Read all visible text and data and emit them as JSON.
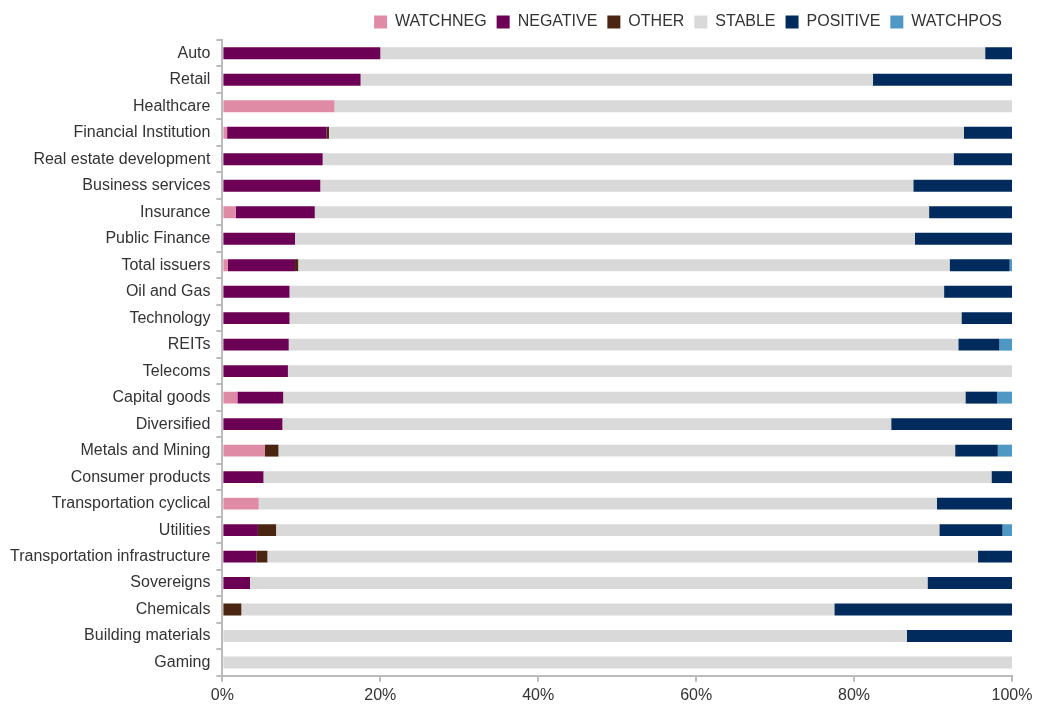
{
  "chart_data": {
    "type": "bar",
    "orientation": "horizontal",
    "stacked": true,
    "legend": "top right",
    "grid": false,
    "categories": [
      "Auto",
      "Retail",
      "Healthcare",
      "Financial Institution",
      "Real estate development",
      "Business services",
      "Insurance",
      "Public Finance",
      "Total issuers",
      "Oil and Gas",
      "Technology",
      "REITs",
      "Telecoms",
      "Capital goods",
      "Diversified",
      "Metals and Mining",
      "Consumer products",
      "Transportation cyclical",
      "Utilities",
      "Transportation infrastructure",
      "Sovereigns",
      "Chemicals",
      "Building materials",
      "Gaming"
    ],
    "xlim": [
      0,
      100
    ],
    "xticks": [
      {
        "value": 0,
        "label": "0%"
      },
      {
        "value": 20,
        "label": "20%"
      },
      {
        "value": 40,
        "label": "40%"
      },
      {
        "value": 60,
        "label": "60%"
      },
      {
        "value": 80,
        "label": "80%"
      },
      {
        "value": 100,
        "label": "100%"
      }
    ],
    "series": [
      {
        "name": "WATCHNEG",
        "color": "#e08ba5",
        "values": [
          0,
          0,
          14.2,
          0.6,
          0,
          0,
          1.7,
          0,
          0.7,
          0,
          0,
          0,
          0,
          1.9,
          0,
          5.4,
          0,
          4.6,
          0,
          0,
          0,
          0,
          0,
          0
        ]
      },
      {
        "name": "NEGATIVE",
        "color": "#6b0055",
        "values": [
          20,
          17.5,
          0,
          12.6,
          12.7,
          12.4,
          10,
          9.2,
          8.5,
          8.5,
          8.5,
          8.4,
          8.3,
          5.8,
          7.6,
          0,
          5.2,
          0,
          4.5,
          4.3,
          3.5,
          0,
          0,
          0
        ]
      },
      {
        "name": "OTHER",
        "color": "#4a2512",
        "values": [
          0,
          0,
          0,
          0.3,
          0,
          0,
          0,
          0,
          0.4,
          0,
          0,
          0,
          0,
          0,
          0,
          1.7,
          0,
          0,
          2.3,
          1.4,
          0,
          2.4,
          0,
          0
        ]
      },
      {
        "name": "STABLE",
        "color": "#d9d9d9",
        "values": [
          76.6,
          64.9,
          85.8,
          80.4,
          79.9,
          75.1,
          77.8,
          78.5,
          82.5,
          82.9,
          85.1,
          84.8,
          91.7,
          86.4,
          77.1,
          85.7,
          92.2,
          85.9,
          84,
          90,
          85.8,
          75.1,
          86.7,
          100
        ]
      },
      {
        "name": "POSITIVE",
        "color": "#002b5c",
        "values": [
          3.4,
          17.6,
          0,
          6.1,
          7.4,
          12.5,
          10.5,
          12.3,
          7.6,
          8.6,
          6.4,
          5.2,
          0,
          4,
          15.3,
          5.4,
          2.6,
          9.5,
          8,
          4.3,
          10.7,
          22.5,
          13.3,
          0
        ]
      },
      {
        "name": "WATCHPOS",
        "color": "#4f98c3",
        "values": [
          0,
          0,
          0,
          0,
          0,
          0,
          0,
          0,
          0.3,
          0,
          0,
          1.6,
          0,
          1.9,
          0,
          1.8,
          0,
          0,
          1.2,
          0,
          0,
          0,
          0,
          0
        ]
      }
    ]
  }
}
